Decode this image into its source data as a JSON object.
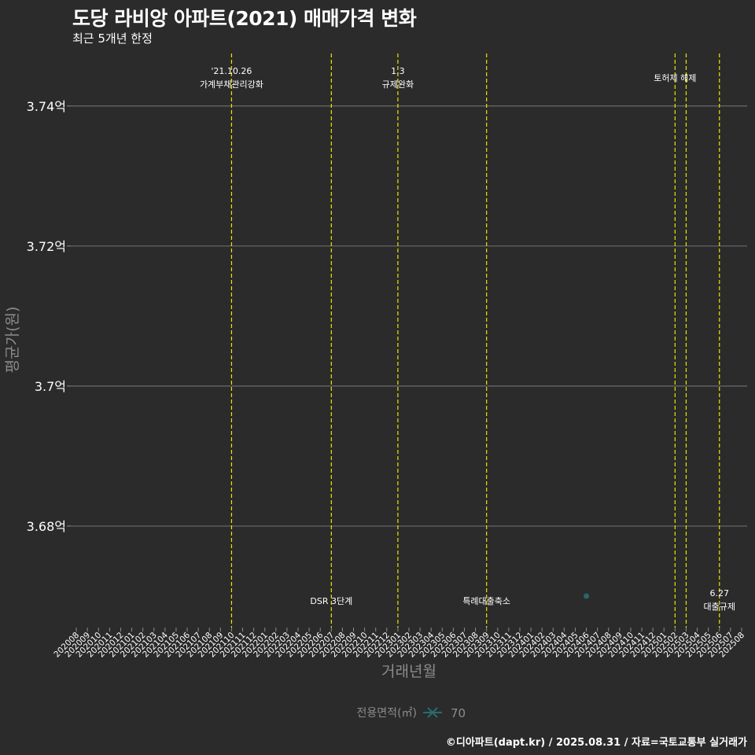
{
  "chart_data": {
    "type": "scatter",
    "title": "도당 라비앙 아파트(2021) 매매가격 변화",
    "subtitle": "최근 5개년 한정",
    "xlabel": "거래년월",
    "ylabel": "평균가(원)",
    "categories": [
      "202008",
      "202009",
      "202010",
      "202011",
      "202012",
      "202101",
      "202102",
      "202103",
      "202104",
      "202105",
      "202106",
      "202107",
      "202108",
      "202109",
      "202110",
      "202111",
      "202112",
      "202201",
      "202202",
      "202203",
      "202204",
      "202205",
      "202206",
      "202207",
      "202208",
      "202209",
      "202210",
      "202211",
      "202212",
      "202301",
      "202302",
      "202303",
      "202304",
      "202305",
      "202306",
      "202307",
      "202308",
      "202309",
      "202310",
      "202311",
      "202312",
      "202401",
      "202402",
      "202403",
      "202404",
      "202405",
      "202406",
      "202407",
      "202408",
      "202409",
      "202410",
      "202411",
      "202412",
      "202501",
      "202502",
      "202503",
      "202504",
      "202505",
      "202506",
      "202507",
      "202508"
    ],
    "ylim": [
      3.6655,
      3.7475
    ],
    "yticks": [
      3.68,
      3.7,
      3.72,
      3.74
    ],
    "ytick_labels": [
      "3.68억",
      "3.7억",
      "3.72억",
      "3.74억"
    ],
    "series": [
      {
        "name": "70",
        "color": "#2a6b70",
        "points": [
          {
            "x": "202406",
            "y": 3.67
          }
        ]
      }
    ],
    "legend": {
      "title": "전용면적(㎡)",
      "label": "70",
      "placement": "bottom"
    },
    "events": [
      {
        "x": "202110",
        "label_lines": [
          "'21.10.26",
          "가계부채관리강화"
        ],
        "label_at": "top"
      },
      {
        "x": "202207",
        "label_lines": [
          "DSR 3단계"
        ],
        "label_at": "bottom"
      },
      {
        "x": "202301",
        "label_lines": [
          "1.3",
          "규제완화"
        ],
        "label_at": "top"
      },
      {
        "x": "202309",
        "label_lines": [
          "특례대출축소"
        ],
        "label_at": "bottom"
      },
      {
        "x": "202502",
        "label_lines": [
          "토허제 해제"
        ],
        "label_at": "top"
      },
      {
        "x": "202503",
        "label_lines": [],
        "label_at": "none"
      },
      {
        "x": "202506",
        "label_lines": [
          "6.27",
          "대출규제"
        ],
        "label_at": "bottom"
      }
    ],
    "event_line_color": "#e6e600"
  },
  "footer": "©디아파트(dapt.kr) / 2025.08.31 / 자료=국토교통부 실거래가"
}
